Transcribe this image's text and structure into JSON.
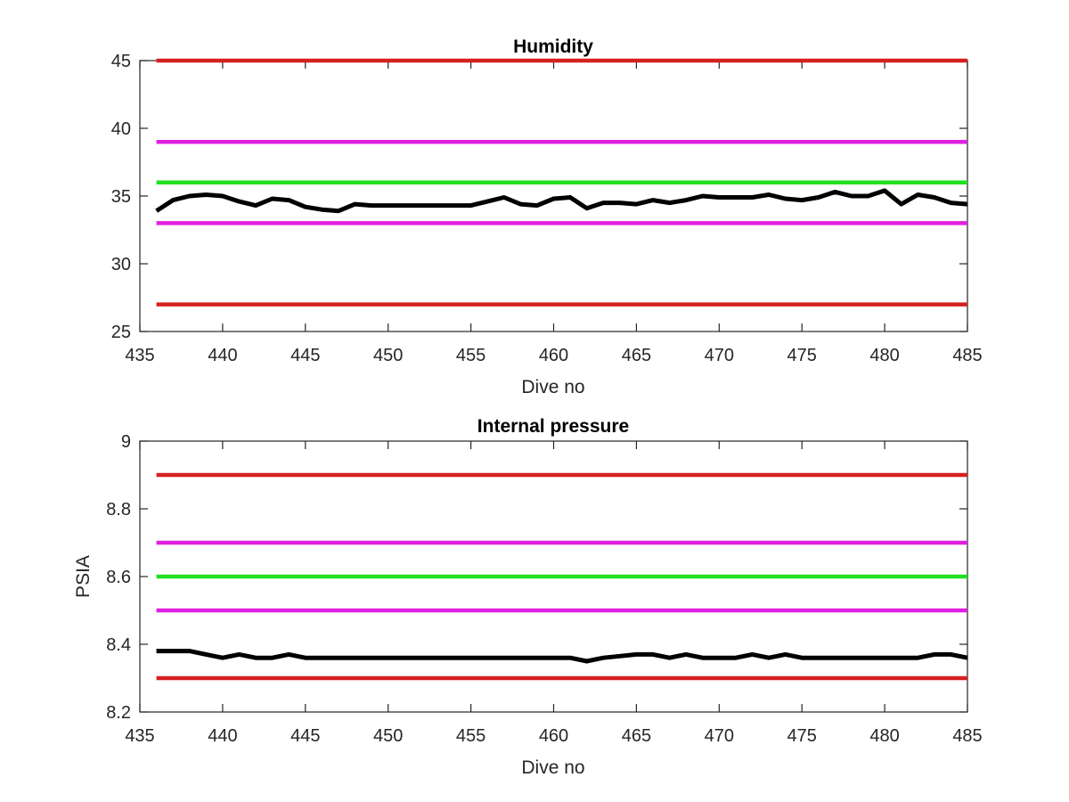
{
  "chart_data": [
    {
      "type": "line",
      "title": "Humidity",
      "xlabel": "Dive no",
      "ylabel": "",
      "xlim": [
        435,
        485
      ],
      "ylim": [
        25,
        45
      ],
      "xticks": [
        435,
        440,
        445,
        450,
        455,
        460,
        465,
        470,
        475,
        480,
        485
      ],
      "yticks": [
        25,
        30,
        35,
        40,
        45
      ],
      "grid": false,
      "series": [
        {
          "role": "limit",
          "color": "#d62020",
          "x": [
            436,
            485
          ],
          "values": [
            45,
            45
          ]
        },
        {
          "role": "limit",
          "color": "#e020e0",
          "x": [
            436,
            485
          ],
          "values": [
            39,
            39
          ]
        },
        {
          "role": "limit",
          "color": "#20e020",
          "x": [
            436,
            485
          ],
          "values": [
            36,
            36
          ]
        },
        {
          "role": "limit",
          "color": "#e020e0",
          "x": [
            436,
            485
          ],
          "values": [
            33,
            33
          ]
        },
        {
          "role": "limit",
          "color": "#d62020",
          "x": [
            436,
            485
          ],
          "values": [
            27,
            27
          ]
        },
        {
          "role": "data",
          "color": "#000000",
          "x": [
            436,
            437,
            438,
            439,
            440,
            441,
            442,
            443,
            444,
            445,
            446,
            447,
            448,
            449,
            450,
            451,
            452,
            453,
            454,
            455,
            456,
            457,
            458,
            459,
            460,
            461,
            462,
            463,
            464,
            465,
            466,
            467,
            468,
            469,
            470,
            471,
            472,
            473,
            474,
            475,
            476,
            477,
            478,
            479,
            480,
            481,
            482,
            483,
            484,
            485
          ],
          "values": [
            33.9,
            34.7,
            35.0,
            35.1,
            35.0,
            34.6,
            34.3,
            34.8,
            34.7,
            34.2,
            34.0,
            33.9,
            34.4,
            34.3,
            34.3,
            34.3,
            34.3,
            34.3,
            34.3,
            34.3,
            34.6,
            34.9,
            34.4,
            34.3,
            34.8,
            34.9,
            34.1,
            34.5,
            34.5,
            34.4,
            34.7,
            34.5,
            34.7,
            35.0,
            34.9,
            34.9,
            34.9,
            35.1,
            34.8,
            34.7,
            34.9,
            35.3,
            35.0,
            35.0,
            35.4,
            34.4,
            35.1,
            34.9,
            34.5,
            34.4
          ]
        }
      ]
    },
    {
      "type": "line",
      "title": "Internal pressure",
      "xlabel": "Dive no",
      "ylabel": "PSIA",
      "xlim": [
        435,
        485
      ],
      "ylim": [
        8.2,
        9.0
      ],
      "xticks": [
        435,
        440,
        445,
        450,
        455,
        460,
        465,
        470,
        475,
        480,
        485
      ],
      "yticks": [
        8.2,
        8.4,
        8.6,
        8.8,
        9
      ],
      "grid": false,
      "series": [
        {
          "role": "limit",
          "color": "#d62020",
          "x": [
            436,
            485
          ],
          "values": [
            8.9,
            8.9
          ]
        },
        {
          "role": "limit",
          "color": "#e020e0",
          "x": [
            436,
            485
          ],
          "values": [
            8.7,
            8.7
          ]
        },
        {
          "role": "limit",
          "color": "#20e020",
          "x": [
            436,
            485
          ],
          "values": [
            8.6,
            8.6
          ]
        },
        {
          "role": "limit",
          "color": "#e020e0",
          "x": [
            436,
            485
          ],
          "values": [
            8.5,
            8.5
          ]
        },
        {
          "role": "limit",
          "color": "#d62020",
          "x": [
            436,
            485
          ],
          "values": [
            8.3,
            8.3
          ]
        },
        {
          "role": "data",
          "color": "#000000",
          "x": [
            436,
            437,
            438,
            439,
            440,
            441,
            442,
            443,
            444,
            445,
            446,
            447,
            448,
            449,
            450,
            451,
            452,
            453,
            454,
            455,
            456,
            457,
            458,
            459,
            460,
            461,
            462,
            463,
            464,
            465,
            466,
            467,
            468,
            469,
            470,
            471,
            472,
            473,
            474,
            475,
            476,
            477,
            478,
            479,
            480,
            481,
            482,
            483,
            484,
            485
          ],
          "values": [
            8.38,
            8.38,
            8.38,
            8.37,
            8.36,
            8.37,
            8.36,
            8.36,
            8.37,
            8.36,
            8.36,
            8.36,
            8.36,
            8.36,
            8.36,
            8.36,
            8.36,
            8.36,
            8.36,
            8.36,
            8.36,
            8.36,
            8.36,
            8.36,
            8.36,
            8.36,
            8.35,
            8.36,
            8.365,
            8.37,
            8.37,
            8.36,
            8.37,
            8.36,
            8.36,
            8.36,
            8.37,
            8.36,
            8.37,
            8.36,
            8.36,
            8.36,
            8.36,
            8.36,
            8.36,
            8.36,
            8.36,
            8.37,
            8.37,
            8.36
          ]
        }
      ]
    }
  ]
}
